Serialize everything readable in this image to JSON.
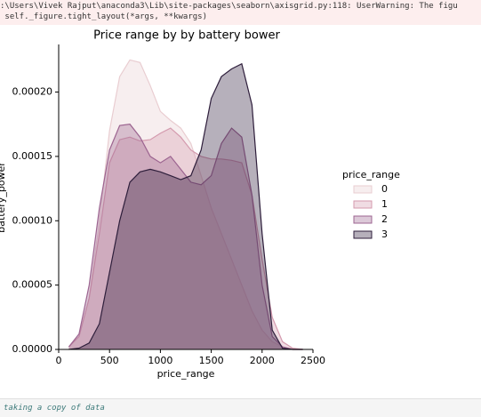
{
  "warning": [
    ":\\Users\\Vivek Rajput\\anaconda3\\Lib\\site-packages\\seaborn\\axisgrid.py:118: UserWarning: The figu",
    " self._figure.tight_layout(*args, **kwargs)"
  ],
  "chart_data": {
    "type": "area",
    "title": "Price range by by battery bower",
    "xlabel": "price_range",
    "ylabel": "battery_power",
    "legend_title": "price_range",
    "legend": "right",
    "x": [
      100,
      200,
      300,
      400,
      500,
      600,
      700,
      800,
      900,
      1000,
      1100,
      1200,
      1300,
      1400,
      1500,
      1600,
      1700,
      1800,
      1900,
      2000,
      2100,
      2200,
      2300,
      2400
    ],
    "series": [
      {
        "name": "0",
        "color": "#e9cdd1",
        "values": [
          2e-06,
          1e-05,
          4e-05,
          0.0001,
          0.00017,
          0.000212,
          0.000225,
          0.000223,
          0.000205,
          0.000185,
          0.000178,
          0.000172,
          0.00016,
          0.000135,
          0.00011,
          9e-05,
          7e-05,
          5e-05,
          3e-05,
          1.5e-05,
          6e-06,
          2e-06,
          5e-07,
          0
        ]
      },
      {
        "name": "1",
        "color": "#d49aae",
        "values": [
          2e-06,
          1e-05,
          4e-05,
          9e-05,
          0.000145,
          0.000163,
          0.000165,
          0.000162,
          0.000163,
          0.000168,
          0.000172,
          0.000165,
          0.000155,
          0.00015,
          0.000148,
          0.000148,
          0.000147,
          0.000145,
          0.00012,
          7e-05,
          2.5e-05,
          6e-06,
          1e-06,
          0
        ]
      },
      {
        "name": "2",
        "color": "#9c6490",
        "values": [
          2e-06,
          1.2e-05,
          5e-05,
          0.00011,
          0.000155,
          0.000174,
          0.000175,
          0.000165,
          0.00015,
          0.000145,
          0.00015,
          0.00014,
          0.00013,
          0.000128,
          0.000135,
          0.00016,
          0.000172,
          0.000165,
          0.00012,
          5e-05,
          1e-05,
          2e-06,
          0,
          0
        ]
      },
      {
        "name": "3",
        "color": "#2e1e3b",
        "values": [
          0,
          1e-06,
          5e-06,
          2e-05,
          6e-05,
          0.0001,
          0.00013,
          0.000138,
          0.00014,
          0.000138,
          0.000135,
          0.000132,
          0.000135,
          0.000155,
          0.000195,
          0.000212,
          0.000218,
          0.000222,
          0.00019,
          9e-05,
          1.5e-05,
          1e-06,
          0,
          0
        ]
      }
    ],
    "xlim": [
      0,
      2500
    ],
    "xticks": [
      0,
      500,
      1000,
      1500,
      2000,
      2500
    ],
    "ylim": [
      0,
      0.000237
    ],
    "yticks": [
      {
        "value": 0,
        "label": "0.00000"
      },
      {
        "value": 5e-05,
        "label": "0.00005"
      },
      {
        "value": 0.0001,
        "label": "0.00010"
      },
      {
        "value": 0.00015,
        "label": "0.00015"
      },
      {
        "value": 0.0002,
        "label": "0.00020"
      }
    ]
  },
  "code": "taking a copy of data"
}
